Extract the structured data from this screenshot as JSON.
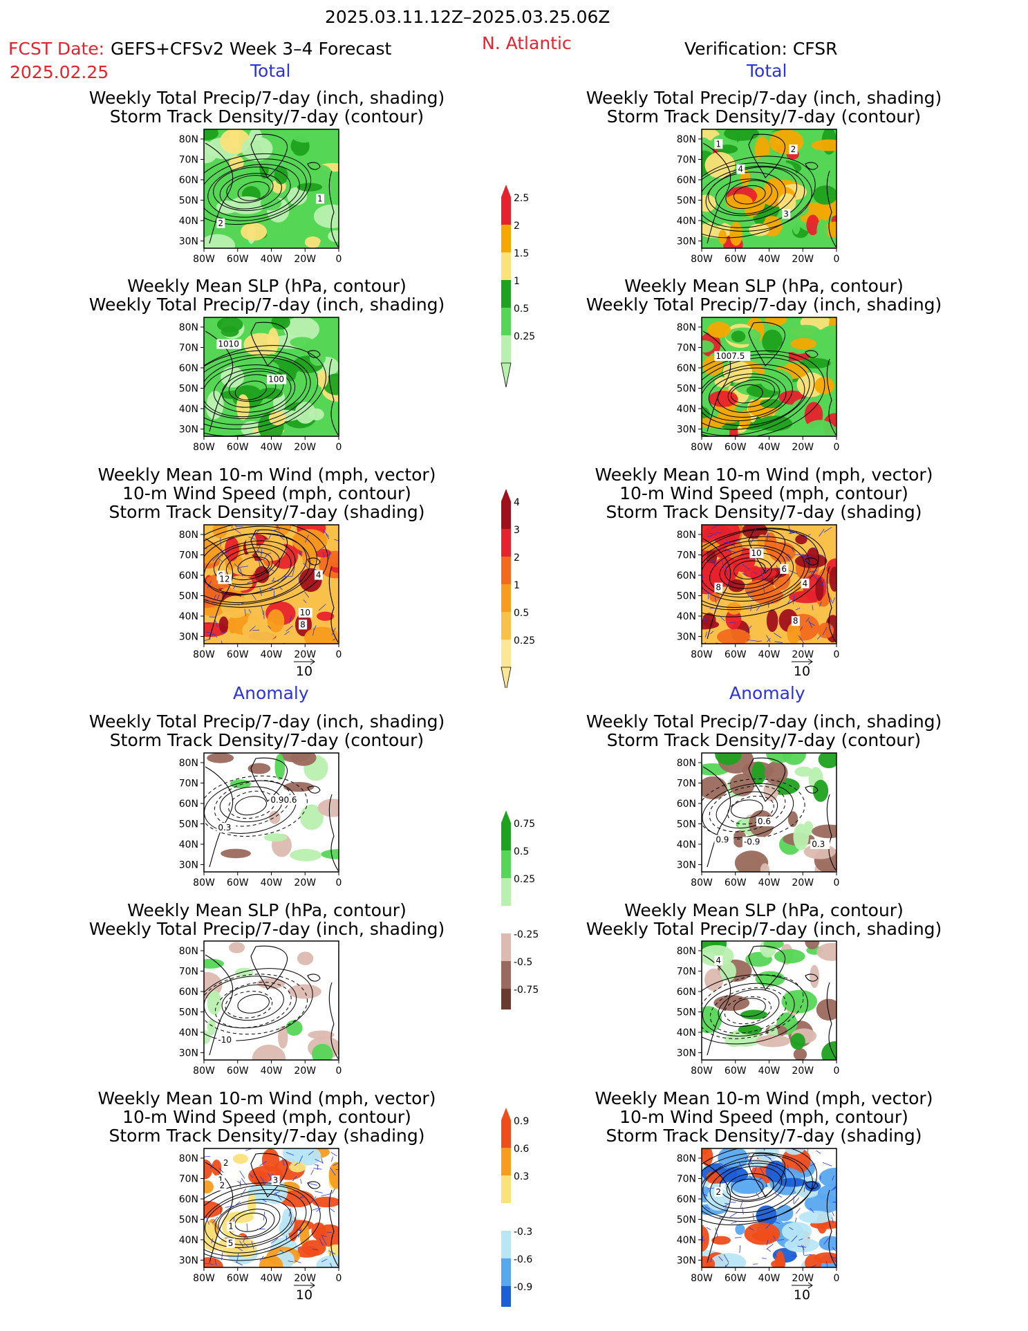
{
  "header": {
    "date_range": "2025.03.11.12Z–2025.03.25.06Z",
    "fcst_label": "FCST Date:",
    "model": "GEFS+CFSv2 Week 3–4 Forecast",
    "fcst_date": "2025.02.25",
    "region": "N. Atlantic",
    "verification": "Verification: CFSR"
  },
  "sections": {
    "total_left": "Total",
    "total_right": "Total",
    "anomaly_left": "Anomaly",
    "anomaly_right": "Anomaly"
  },
  "titles": {
    "precip_storm": [
      "Weekly Total Precip/7-day (inch, shading)",
      "Storm Track Density/7-day (contour)"
    ],
    "slp_precip": [
      "Weekly Mean SLP (hPa, contour)",
      "Weekly Total Precip/7-day (inch, shading)"
    ],
    "wind_storm": [
      "Weekly Mean 10-m Wind (mph, vector)",
      "10-m Wind Speed (mph, contour)",
      "Storm Track Density/7-day (shading)"
    ]
  },
  "axes": {
    "lat": [
      "80N",
      "70N",
      "60N",
      "50N",
      "40N",
      "30N"
    ],
    "lon": [
      "80W",
      "60W",
      "40W",
      "20W",
      "0"
    ]
  },
  "vector_ref": "10",
  "colorbars": {
    "precip_total": {
      "labels": [
        "2.5",
        "2",
        "1.5",
        "1",
        "0.5",
        "0.25"
      ],
      "colors": [
        "#e8222c",
        "#f7a800",
        "#fbe27a",
        "#1fa21f",
        "#55d655",
        "#b9f0b0"
      ]
    },
    "storm_total": {
      "labels": [
        "4",
        "3",
        "2",
        "1",
        "0.5",
        "0.25"
      ],
      "colors": [
        "#a0101c",
        "#e8222c",
        "#f26b1d",
        "#f79c1d",
        "#f9c04a",
        "#fde796"
      ]
    },
    "precip_anom": {
      "labels": [
        "0.75",
        "0.5",
        "0.25",
        "-0.25",
        "-0.5",
        "-0.75"
      ],
      "colors": [
        "#1fa21f",
        "#55d655",
        "#b9f0b0",
        "#ffffff",
        "#dcbab0",
        "#9b6a5e",
        "#6b3a2e"
      ]
    },
    "storm_anom": {
      "labels": [
        "0.9",
        "0.6",
        "0.3",
        "-0.3",
        "-0.6",
        "-0.9"
      ],
      "colors": [
        "#f04d1a",
        "#f79c1d",
        "#fbe27a",
        "#ffffff",
        "#b8e6f5",
        "#58a8f0",
        "#1a5fd6"
      ]
    }
  },
  "panels": {
    "p1": {
      "labels": [
        "2",
        "1"
      ]
    },
    "p2": {
      "labels": [
        "1",
        "2",
        "4",
        "3"
      ]
    },
    "p3": {
      "labels": [
        "1010",
        "100"
      ]
    },
    "p4": {
      "labels": [
        "1007.5"
      ]
    },
    "p5": {
      "labels": [
        "6",
        "12",
        "8",
        "10",
        "4"
      ]
    },
    "p6": {
      "labels": [
        "8",
        "8",
        "10",
        "4",
        "6"
      ]
    },
    "p7": {
      "labels": [
        "0.3",
        "0.90.6"
      ]
    },
    "p8": {
      "labels": [
        "0.9",
        "-0.9",
        "0.6",
        "0.3"
      ]
    },
    "p9": {
      "labels": [
        "-10"
      ]
    },
    "p10": {
      "labels": [
        "4"
      ]
    },
    "p11": {
      "labels": [
        "1",
        "3",
        "2",
        "5",
        "2",
        "1"
      ]
    },
    "p12": {
      "labels": [
        "2"
      ]
    }
  }
}
